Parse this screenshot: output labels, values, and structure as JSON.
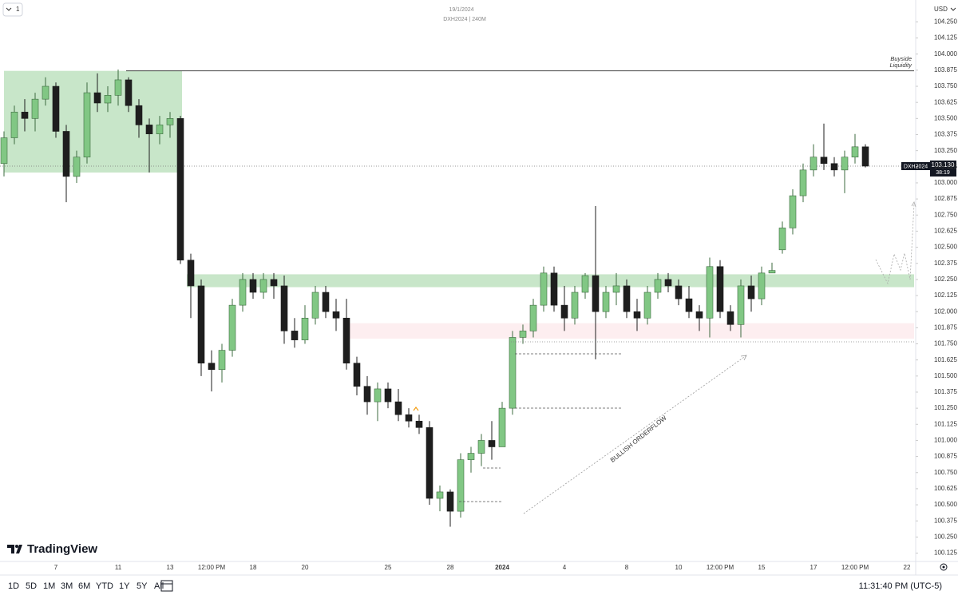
{
  "chart_data": {
    "type": "candlestick",
    "header": {
      "date": "19/1/2024",
      "symbol": "DXH2024 | 240M",
      "interval_menu": "1",
      "currency": "USD"
    },
    "x": [
      null,
      null,
      null,
      null,
      null,
      "7",
      null,
      null,
      null,
      null,
      null,
      "11",
      null,
      null,
      null,
      null,
      "13",
      null,
      null,
      null,
      "12:00 PM",
      null,
      null,
      null,
      "18",
      null,
      null,
      null,
      null,
      "20",
      null,
      null,
      null,
      null,
      null,
      null,
      null,
      "25",
      null,
      null,
      null,
      null,
      null,
      "28",
      null,
      null,
      null,
      null,
      "2024",
      null,
      null,
      null,
      null,
      null,
      "4",
      null,
      null,
      null,
      null,
      null,
      "8",
      null,
      null,
      null,
      null,
      "10",
      null,
      null,
      null,
      "12:00 PM",
      null,
      null,
      null,
      "15",
      null,
      null,
      null,
      null,
      "17",
      null,
      null,
      null,
      "12:00 PM",
      null,
      null,
      null,
      null,
      "22",
      null
    ],
    "open": [
      103.15,
      103.35,
      103.55,
      103.5,
      103.65,
      103.75,
      103.4,
      103.05,
      103.2,
      103.7,
      103.62,
      103.68,
      103.8,
      103.6,
      103.45,
      103.38,
      103.45,
      103.5,
      102.4,
      102.2,
      101.6,
      101.55,
      101.7,
      102.05,
      102.25,
      102.15,
      102.25,
      102.2,
      101.85,
      101.78,
      101.95,
      102.15,
      102.0,
      101.95,
      101.6,
      101.42,
      101.3,
      101.4,
      101.3,
      101.2,
      101.15,
      101.1,
      100.55,
      100.6,
      100.45,
      100.85,
      100.9,
      101.0,
      100.95,
      101.25,
      101.8,
      101.85,
      102.05,
      102.3,
      102.05,
      101.95,
      102.15,
      102.28,
      102.0,
      102.15,
      102.2,
      102.0,
      101.95,
      102.15,
      102.25,
      102.2,
      102.1,
      102.0,
      101.95,
      102.35,
      102.0,
      101.9,
      102.2,
      102.1,
      102.3,
      102.48,
      102.65,
      102.9,
      103.1,
      103.2,
      103.15,
      103.1,
      103.2,
      103.28,
      null,
      null,
      null,
      null,
      null
    ],
    "high": [
      103.4,
      103.6,
      103.65,
      103.7,
      103.82,
      103.78,
      103.45,
      103.25,
      103.78,
      103.85,
      103.75,
      103.88,
      103.82,
      103.65,
      103.5,
      103.52,
      103.55,
      103.52,
      102.45,
      102.25,
      101.7,
      101.75,
      102.1,
      102.3,
      102.3,
      102.3,
      102.3,
      102.28,
      101.95,
      102.05,
      102.2,
      102.2,
      102.1,
      102.1,
      101.65,
      101.5,
      101.45,
      101.45,
      101.4,
      101.25,
      101.2,
      101.15,
      100.65,
      100.62,
      100.9,
      100.95,
      101.05,
      101.15,
      101.3,
      101.85,
      101.9,
      102.1,
      102.35,
      102.35,
      102.2,
      102.2,
      102.3,
      102.82,
      102.2,
      102.3,
      102.25,
      102.1,
      102.2,
      102.3,
      102.3,
      102.25,
      102.2,
      102.05,
      102.42,
      102.4,
      102.05,
      102.25,
      102.28,
      102.35,
      102.38,
      102.7,
      102.95,
      103.15,
      103.3,
      103.46,
      103.2,
      103.25,
      103.38,
      103.3,
      null,
      null,
      null,
      null,
      null
    ],
    "low": [
      103.05,
      103.3,
      103.4,
      103.4,
      103.6,
      103.35,
      102.85,
      103.0,
      103.15,
      103.55,
      103.55,
      103.6,
      103.55,
      103.35,
      103.08,
      103.3,
      103.35,
      102.37,
      101.95,
      101.5,
      101.38,
      101.45,
      101.65,
      102.0,
      102.1,
      102.1,
      102.1,
      101.75,
      101.72,
      101.75,
      101.9,
      101.95,
      101.85,
      101.55,
      101.35,
      101.2,
      101.15,
      101.25,
      101.15,
      101.1,
      101.05,
      100.5,
      100.45,
      100.33,
      100.4,
      100.75,
      100.8,
      100.85,
      100.95,
      101.2,
      101.75,
      101.8,
      102.0,
      102.0,
      101.85,
      101.9,
      102.1,
      101.63,
      101.95,
      102.05,
      101.95,
      101.85,
      101.9,
      102.1,
      102.15,
      102.05,
      101.95,
      101.85,
      101.8,
      101.95,
      101.85,
      101.8,
      102.0,
      102.05,
      102.3,
      102.45,
      102.6,
      102.85,
      103.05,
      103.1,
      103.05,
      102.92,
      103.15,
      103.12,
      null,
      null,
      null,
      null,
      null
    ],
    "close": [
      103.35,
      103.55,
      103.5,
      103.65,
      103.75,
      103.4,
      103.05,
      103.2,
      103.7,
      103.62,
      103.68,
      103.8,
      103.6,
      103.45,
      103.38,
      103.45,
      103.5,
      102.4,
      102.2,
      101.6,
      101.55,
      101.7,
      102.05,
      102.25,
      102.15,
      102.25,
      102.2,
      101.85,
      101.78,
      101.95,
      102.15,
      102.0,
      101.95,
      101.6,
      101.42,
      101.3,
      101.4,
      101.3,
      101.2,
      101.15,
      101.1,
      100.55,
      100.6,
      100.45,
      100.85,
      100.9,
      101.0,
      100.95,
      101.25,
      101.8,
      101.85,
      102.05,
      102.3,
      102.05,
      101.95,
      102.15,
      102.28,
      102.0,
      102.15,
      102.2,
      102.0,
      101.95,
      102.15,
      102.25,
      102.2,
      102.1,
      102.0,
      101.95,
      102.35,
      102.0,
      101.9,
      102.2,
      102.1,
      102.3,
      102.32,
      102.65,
      102.9,
      103.1,
      103.2,
      103.15,
      103.1,
      103.2,
      103.28,
      103.13,
      null,
      null,
      null,
      null,
      null
    ],
    "up_color": "#81c784",
    "down_color": "#1e1e1e",
    "ylim": [
      100.06,
      104.42
    ],
    "yticks": [
      100.125,
      {
        "value": 100.25,
        "label": "100.250"
      },
      100.375,
      {
        "value": 100.5,
        "label": "100.500"
      },
      100.625,
      {
        "value": 100.75,
        "label": "100.750"
      },
      100.875,
      {
        "value": 101,
        "label": "101.000"
      },
      101.125,
      {
        "value": 101.25,
        "label": "101.250"
      },
      101.375,
      {
        "value": 101.5,
        "label": "101.500"
      },
      101.625,
      {
        "value": 101.75,
        "label": "101.750"
      },
      101.875,
      {
        "value": 102,
        "label": "102.000"
      },
      102.125,
      {
        "value": 102.25,
        "label": "102.250"
      },
      102.375,
      {
        "value": 102.5,
        "label": "102.500"
      },
      102.625,
      {
        "value": 102.75,
        "label": "102.750"
      },
      102.875,
      {
        "value": 103,
        "label": "103.000"
      },
      103.125,
      {
        "value": 103.25,
        "label": "103.250"
      },
      103.375,
      {
        "value": 103.5,
        "label": "103.500"
      },
      103.625,
      {
        "value": 103.75,
        "label": "103.750"
      },
      103.875,
      {
        "value": 104,
        "label": "104.000"
      },
      104.125,
      {
        "value": 104.25,
        "label": "104.250"
      }
    ],
    "grid": false,
    "zones": [
      {
        "low": 103.08,
        "high": 103.87,
        "color": "#c8e6c9"
      },
      {
        "low": 102.19,
        "high": 102.29,
        "color": "#c8e6c9"
      },
      {
        "low": 101.79,
        "high": 101.91,
        "color": "#fdeef0"
      }
    ],
    "buyside_level": 103.87,
    "annotations": {
      "buyside": [
        "Buyside",
        "Liquidity"
      ],
      "orderflow": "BULLISH ORDERFLOW"
    },
    "price_tag": {
      "symbol": "DXH2024",
      "price": "103.130",
      "countdown": "38:19"
    },
    "toolbar": {
      "ranges": [
        "1D",
        "5D",
        "1M",
        "3M",
        "6M",
        "YTD",
        "1Y",
        "5Y",
        "All"
      ],
      "clock": "11:31:40 PM (UTC-5)"
    },
    "brand": "TradingView"
  }
}
